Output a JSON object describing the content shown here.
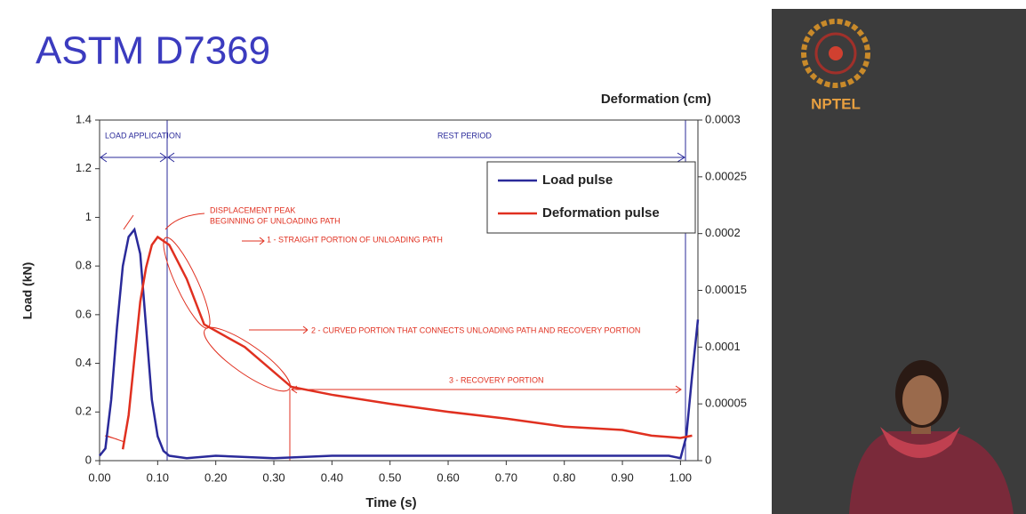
{
  "header": {
    "title": "ASTM D7369",
    "logo_text": "NPTEL"
  },
  "chart_data": {
    "type": "line",
    "xlabel": "Time (s)",
    "ylabel": "Load (kN)",
    "y2label": "Deformation (cm)",
    "xlim": [
      0,
      1.03
    ],
    "ylim": [
      0,
      1.4
    ],
    "y2lim": [
      0,
      0.0003
    ],
    "xticks": [
      {
        "value": 0,
        "label": "0.00"
      },
      {
        "value": 0.1,
        "label": "0.10"
      },
      {
        "value": 0.2,
        "label": "0.20"
      },
      {
        "value": 0.3,
        "label": "0.30"
      },
      {
        "value": 0.4,
        "label": "0.40"
      },
      {
        "value": 0.5,
        "label": "0.50"
      },
      {
        "value": 0.6,
        "label": "0.60"
      },
      {
        "value": 0.7,
        "label": "0.70"
      },
      {
        "value": 0.8,
        "label": "0.80"
      },
      {
        "value": 0.9,
        "label": "0.90"
      },
      {
        "value": 1,
        "label": "1.00"
      }
    ],
    "yticks": [
      0,
      0.2,
      0.4,
      0.6,
      0.8,
      1,
      1.2,
      1.4
    ],
    "y2ticks": [
      0,
      5e-05,
      0.0001,
      0.00015,
      0.0002,
      0.00025,
      0.0003
    ],
    "grid": false,
    "legend": "upper right",
    "series": [
      {
        "name": "Load pulse",
        "color": "#2a2a9a",
        "x": [
          0,
          0.01,
          0.02,
          0.03,
          0.04,
          0.05,
          0.06,
          0.07,
          0.08,
          0.09,
          0.1,
          0.11,
          0.12,
          0.15,
          0.2,
          0.3,
          0.4,
          0.5,
          0.6,
          0.7,
          0.8,
          0.9,
          0.98,
          1.0,
          1.01,
          1.02,
          1.03
        ],
        "values": [
          0.02,
          0.05,
          0.25,
          0.55,
          0.8,
          0.92,
          0.95,
          0.85,
          0.55,
          0.25,
          0.1,
          0.04,
          0.02,
          0.01,
          0.02,
          0.01,
          0.02,
          0.02,
          0.02,
          0.02,
          0.02,
          0.02,
          0.02,
          0.01,
          0.1,
          0.35,
          0.58
        ]
      },
      {
        "name": "Deformation pulse",
        "color": "#e03020",
        "axis": "y2",
        "x": [
          0.04,
          0.05,
          0.06,
          0.07,
          0.08,
          0.09,
          0.1,
          0.12,
          0.15,
          0.18,
          0.25,
          0.33,
          0.4,
          0.5,
          0.6,
          0.7,
          0.8,
          0.9,
          0.95,
          1.0,
          1.02
        ],
        "values": [
          1e-05,
          4e-05,
          9e-05,
          0.00014,
          0.00017,
          0.00019,
          0.000197,
          0.00019,
          0.00016,
          0.00012,
          0.0001,
          6.5e-05,
          5.8e-05,
          5e-05,
          4.3e-05,
          3.7e-05,
          3e-05,
          2.7e-05,
          2.2e-05,
          2e-05,
          2.2e-05
        ]
      }
    ],
    "annotations": [
      "LOAD APPLICATION",
      "REST PERIOD",
      "DISPLACEMENT PEAK",
      "BEGINNING OF UNLOADING PATH",
      "1 - STRAIGHT PORTION OF UNLOADING PATH",
      "2 - CURVED PORTION THAT CONNECTS UNLOADING PATH AND RECOVERY PORTION",
      "3 - RECOVERY PORTION"
    ]
  }
}
